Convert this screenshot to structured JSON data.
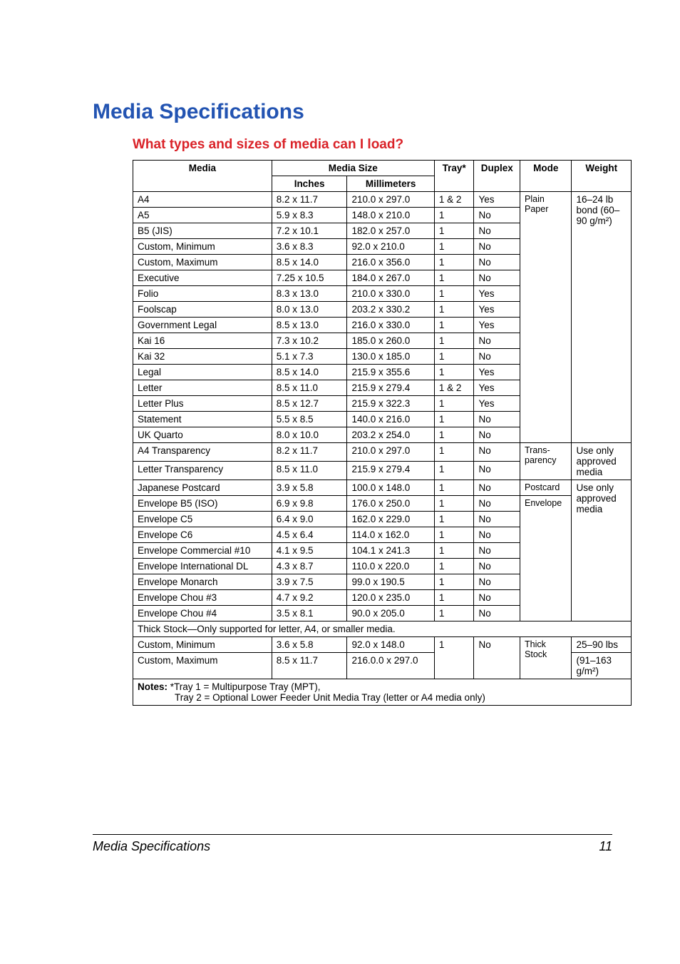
{
  "title": "Media Specifications",
  "subtitle": "What types and sizes of media can I load?",
  "headers": {
    "media": "Media",
    "media_size": "Media Size",
    "inches": "Inches",
    "millimeters": "Millimeters",
    "tray": "Tray*",
    "duplex": "Duplex",
    "mode": "Mode",
    "weight": "Weight"
  },
  "group1_mode": "Plain Paper",
  "group1_weight": "16–24 lb bond (60–90 g/m²)",
  "group1": [
    {
      "m": "A4",
      "in": "8.2 x 11.7",
      "mm": "210.0 x 297.0",
      "tr": "1 & 2",
      "dx": "Yes"
    },
    {
      "m": "A5",
      "in": "5.9 x 8.3",
      "mm": "148.0 x 210.0",
      "tr": "1",
      "dx": "No"
    },
    {
      "m": "B5 (JIS)",
      "in": "7.2 x 10.1",
      "mm": "182.0 x 257.0",
      "tr": "1",
      "dx": "No"
    },
    {
      "m": "Custom, Minimum",
      "in": "3.6 x 8.3",
      "mm": "92.0 x 210.0",
      "tr": "1",
      "dx": "No"
    },
    {
      "m": "Custom, Maximum",
      "in": "8.5 x 14.0",
      "mm": "216.0 x 356.0",
      "tr": "1",
      "dx": "No"
    },
    {
      "m": "Executive",
      "in": "7.25 x 10.5",
      "mm": "184.0 x 267.0",
      "tr": "1",
      "dx": "No"
    },
    {
      "m": "Folio",
      "in": "8.3 x 13.0",
      "mm": "210.0 x 330.0",
      "tr": "1",
      "dx": "Yes"
    },
    {
      "m": "Foolscap",
      "in": "8.0 x 13.0",
      "mm": "203.2 x 330.2",
      "tr": "1",
      "dx": "Yes"
    },
    {
      "m": "Government Legal",
      "in": "8.5 x 13.0",
      "mm": "216.0 x 330.0",
      "tr": "1",
      "dx": "Yes"
    },
    {
      "m": "Kai 16",
      "in": "7.3 x 10.2",
      "mm": "185.0 x 260.0",
      "tr": "1",
      "dx": "No"
    },
    {
      "m": "Kai 32",
      "in": "5.1 x 7.3",
      "mm": "130.0 x 185.0",
      "tr": "1",
      "dx": "No"
    },
    {
      "m": "Legal",
      "in": "8.5 x 14.0",
      "mm": "215.9 x 355.6",
      "tr": "1",
      "dx": "Yes"
    },
    {
      "m": "Letter",
      "in": "8.5 x 11.0",
      "mm": "215.9 x 279.4",
      "tr": "1 & 2",
      "dx": "Yes"
    },
    {
      "m": "Letter Plus",
      "in": "8.5 x 12.7",
      "mm": "215.9 x 322.3",
      "tr": "1",
      "dx": "Yes"
    },
    {
      "m": "Statement",
      "in": "5.5 x 8.5",
      "mm": "140.0 x 216.0",
      "tr": "1",
      "dx": "No"
    },
    {
      "m": "UK Quarto",
      "in": "8.0 x 10.0",
      "mm": "203.2 x 254.0",
      "tr": "1",
      "dx": "No"
    }
  ],
  "group2_mode": "Trans-parency",
  "group2_weight": "Use only approved media",
  "group2": [
    {
      "m": "A4 Transparency",
      "in": "8.2 x 11.7",
      "mm": "210.0 x 297.0",
      "tr": "1",
      "dx": "No"
    },
    {
      "m": "Letter Transparency",
      "in": "8.5 x 11.0",
      "mm": "215.9 x 279.4",
      "tr": "1",
      "dx": "No"
    }
  ],
  "group3_weight": "Use only approved media",
  "group3": [
    {
      "m": "Japanese Postcard",
      "in": "3.9 x 5.8",
      "mm": "100.0 x 148.0",
      "tr": "1",
      "dx": "No",
      "mode": "Postcard"
    },
    {
      "m": "Envelope B5 (ISO)",
      "in": "6.9 x 9.8",
      "mm": "176.0 x 250.0",
      "tr": "1",
      "dx": "No",
      "mode": "Envelope"
    },
    {
      "m": "Envelope C5",
      "in": "6.4 x 9.0",
      "mm": "162.0 x 229.0",
      "tr": "1",
      "dx": "No"
    },
    {
      "m": "Envelope C6",
      "in": "4.5 x 6.4",
      "mm": "114.0 x 162.0",
      "tr": "1",
      "dx": "No"
    },
    {
      "m": "Envelope Commercial #10",
      "in": "4.1 x 9.5",
      "mm": "104.1 x 241.3",
      "tr": "1",
      "dx": "No"
    },
    {
      "m": "Envelope International DL",
      "in": "4.3 x 8.7",
      "mm": "110.0 x 220.0",
      "tr": "1",
      "dx": "No"
    },
    {
      "m": "Envelope Monarch",
      "in": "3.9 x 7.5",
      "mm": "99.0 x 190.5",
      "tr": "1",
      "dx": "No"
    },
    {
      "m": "Envelope Chou #3",
      "in": "4.7 x 9.2",
      "mm": "120.0 x 235.0",
      "tr": "1",
      "dx": "No"
    },
    {
      "m": "Envelope Chou #4",
      "in": "3.5 x 8.1",
      "mm": "90.0 x 205.0",
      "tr": "1",
      "dx": "No"
    }
  ],
  "thick_row": "Thick Stock—Only supported for letter, A4, or smaller media.",
  "group4_mode": "Thick Stock",
  "group4": [
    {
      "m": "Custom, Minimum",
      "in": "3.6 x 5.8",
      "mm": "92.0 x 148.0",
      "tr": "1",
      "dx": "No",
      "w": "25–90 lbs"
    },
    {
      "m": "Custom, Maximum",
      "in": "8.5 x 11.7",
      "mm": "216.0.0 x 297.0",
      "w": "(91–163 g/m²)"
    }
  ],
  "notes_label": "Notes:",
  "notes_l1": "*Tray 1 = Multipurpose Tray (MPT),",
  "notes_l2": "Tray 2 = Optional Lower Feeder Unit Media Tray (letter or A4 media only)",
  "footer_title": "Media Specifications",
  "footer_page": "11"
}
